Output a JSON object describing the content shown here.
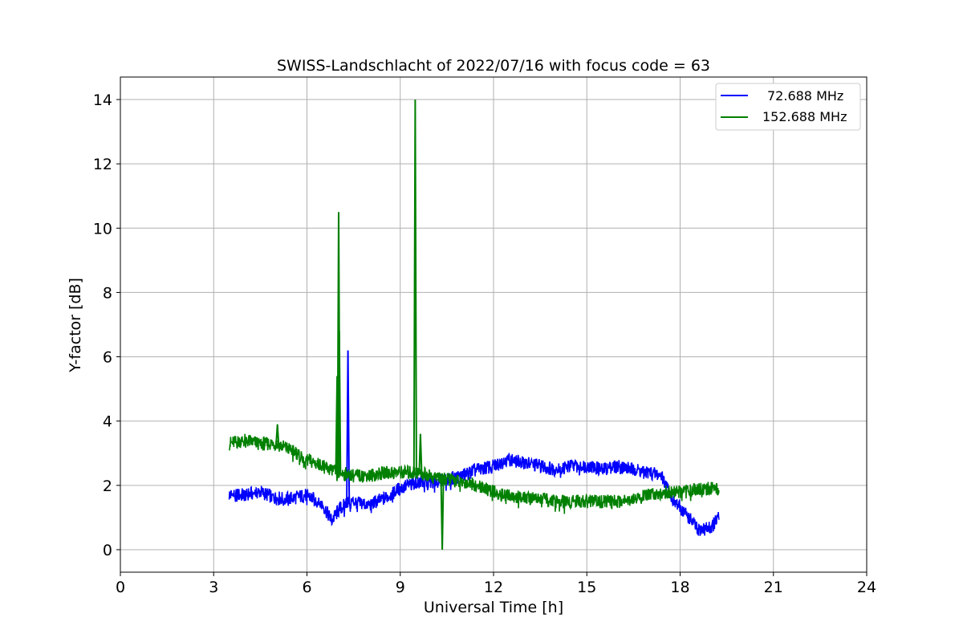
{
  "chart_data": {
    "type": "line",
    "title": "SWISS-Landschlacht of 2022/07/16 with focus code = 63",
    "xlabel": "Universal Time [h]",
    "ylabel": "Y-factor [dB]",
    "xlim": [
      0,
      24
    ],
    "ylim": [
      -0.7,
      14.7
    ],
    "xticks": [
      0,
      3,
      6,
      9,
      12,
      15,
      18,
      21,
      24
    ],
    "yticks": [
      0,
      2,
      4,
      6,
      8,
      10,
      12,
      14
    ],
    "grid": true,
    "legend_position": "top-right",
    "series": [
      {
        "name": "72.688 MHz",
        "color": "#0000ff",
        "x": [
          3.5,
          4.0,
          4.5,
          5.0,
          5.5,
          6.0,
          6.5,
          6.8,
          7.0,
          7.3,
          7.5,
          8.0,
          8.5,
          9.0,
          9.5,
          10.0,
          10.5,
          11.0,
          11.5,
          12.0,
          12.5,
          13.0,
          13.5,
          14.0,
          14.5,
          15.0,
          15.5,
          16.0,
          16.5,
          17.0,
          17.4,
          17.8,
          18.2,
          18.6,
          19.0,
          19.25
        ],
        "y": [
          1.7,
          1.7,
          1.8,
          1.6,
          1.6,
          1.7,
          1.4,
          0.9,
          1.2,
          1.5,
          1.5,
          1.4,
          1.6,
          1.9,
          2.1,
          2.1,
          2.2,
          2.3,
          2.5,
          2.6,
          2.8,
          2.7,
          2.6,
          2.5,
          2.6,
          2.6,
          2.5,
          2.6,
          2.5,
          2.4,
          2.3,
          1.5,
          1.1,
          0.6,
          0.7,
          1.0
        ],
        "spikes": [
          {
            "x": 7.32,
            "y": 6.2
          }
        ]
      },
      {
        "name": "152.688 MHz",
        "color": "#008000",
        "x": [
          3.5,
          4.0,
          4.5,
          5.0,
          5.5,
          6.0,
          6.5,
          7.0,
          7.5,
          8.0,
          8.5,
          9.0,
          9.5,
          10.0,
          10.5,
          11.0,
          11.5,
          12.0,
          12.5,
          13.0,
          13.5,
          14.0,
          14.5,
          15.0,
          15.5,
          16.0,
          16.5,
          17.0,
          17.5,
          18.0,
          18.5,
          19.0,
          19.25
        ],
        "y": [
          3.3,
          3.4,
          3.3,
          3.3,
          3.1,
          2.8,
          2.6,
          2.4,
          2.3,
          2.3,
          2.4,
          2.4,
          2.4,
          2.3,
          2.2,
          2.1,
          2.0,
          1.8,
          1.7,
          1.6,
          1.6,
          1.5,
          1.5,
          1.5,
          1.5,
          1.5,
          1.6,
          1.7,
          1.8,
          1.8,
          1.9,
          1.9,
          1.9
        ],
        "spikes": [
          {
            "x": 6.97,
            "y": 5.4
          },
          {
            "x": 7.02,
            "y": 10.5
          },
          {
            "x": 7.04,
            "y": 6.8
          },
          {
            "x": 9.48,
            "y": 14.0
          },
          {
            "x": 9.65,
            "y": 3.6
          },
          {
            "x": 10.35,
            "y": 0.0
          },
          {
            "x": 5.05,
            "y": 3.9
          }
        ]
      }
    ]
  }
}
